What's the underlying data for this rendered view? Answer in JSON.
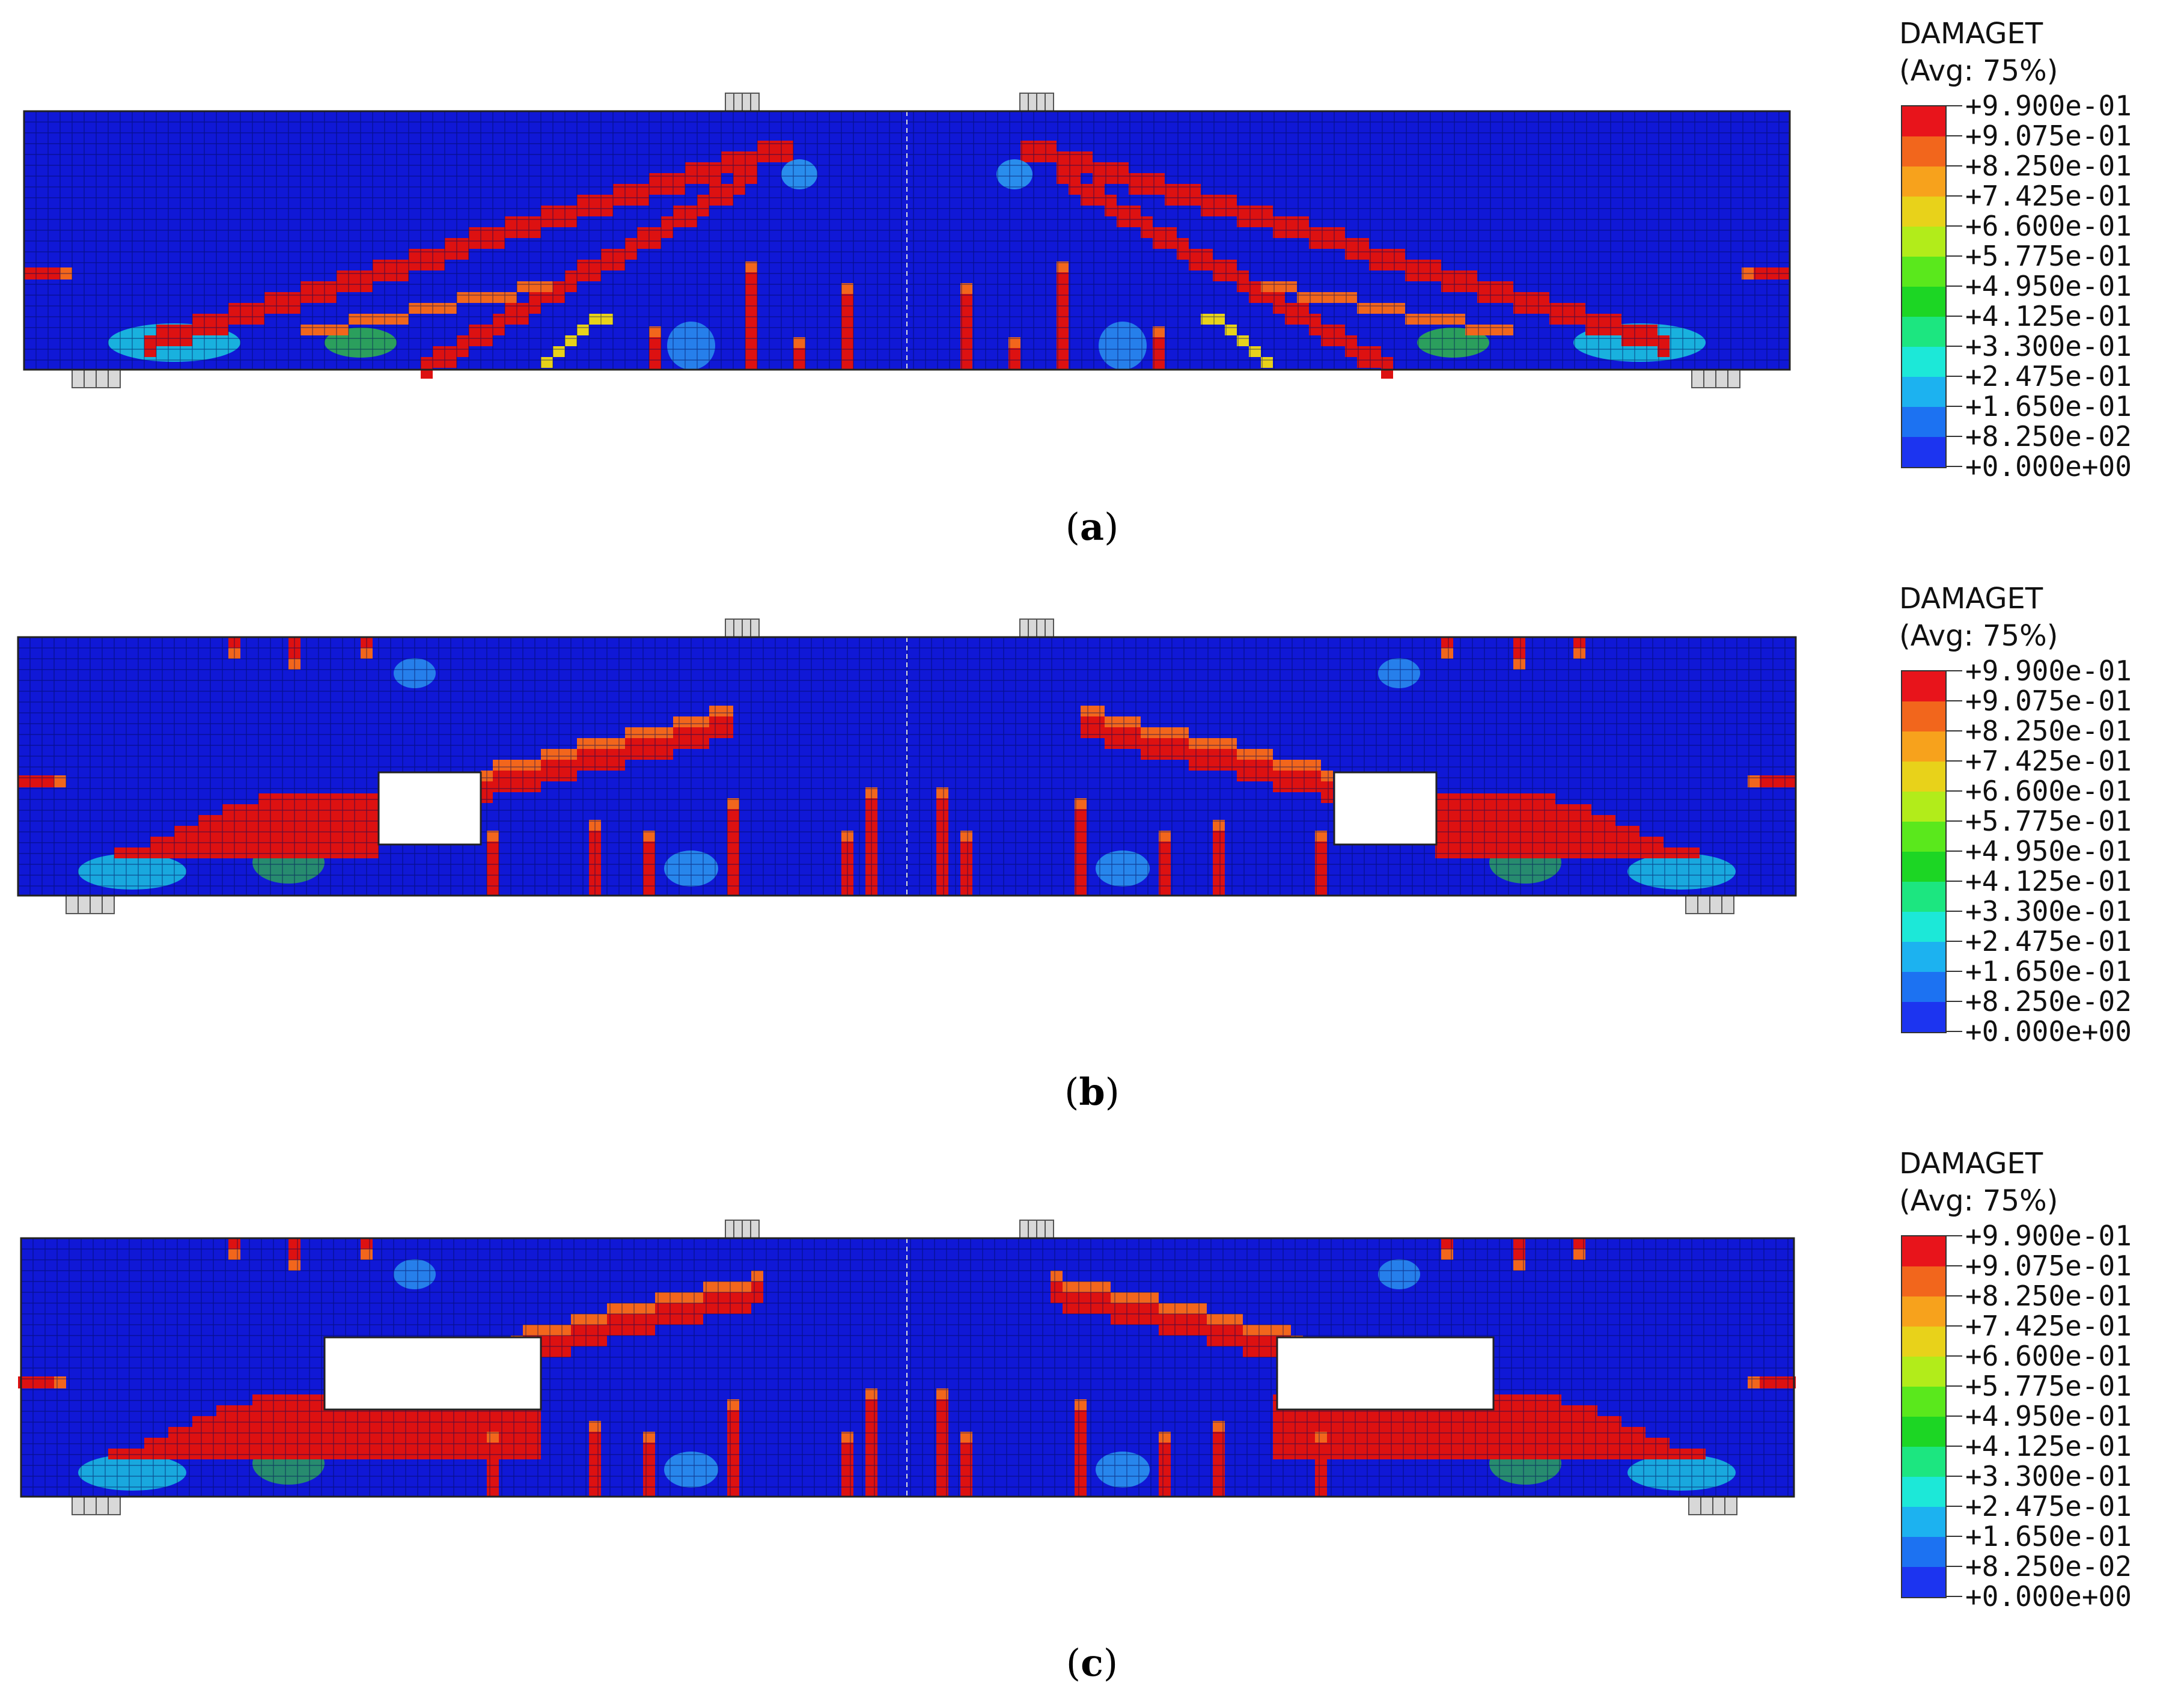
{
  "panels": [
    {
      "caption_open": "(",
      "caption_letter": "a",
      "caption_close": ")",
      "opening": null
    },
    {
      "caption_open": "(",
      "caption_letter": "b",
      "caption_close": ")",
      "opening": "square"
    },
    {
      "caption_open": "(",
      "caption_letter": "c",
      "caption_close": ")",
      "opening": "rectangular"
    }
  ],
  "legend": {
    "variable": "DAMAGET",
    "averaging": "(Avg: 75%)",
    "levels": [
      {
        "label": "+9.900e-01",
        "color": "#e8141b"
      },
      {
        "label": "+9.075e-01",
        "color": "#f2661c"
      },
      {
        "label": "+8.250e-01",
        "color": "#f7a21c"
      },
      {
        "label": "+7.425e-01",
        "color": "#e8d21a"
      },
      {
        "label": "+6.600e-01",
        "color": "#b2ec1a"
      },
      {
        "label": "+5.775e-01",
        "color": "#5ae81c"
      },
      {
        "label": "+4.950e-01",
        "color": "#1cd624"
      },
      {
        "label": "+4.125e-01",
        "color": "#1ce680"
      },
      {
        "label": "+3.300e-01",
        "color": "#1ce8d8"
      },
      {
        "label": "+2.475e-01",
        "color": "#1cb2f0"
      },
      {
        "label": "+1.650e-01",
        "color": "#1c72f2"
      },
      {
        "label": "+8.250e-02",
        "color": "#1c34f0"
      },
      {
        "label": "+0.000e+00",
        "color": null
      }
    ],
    "base_color": "#0a1ad0"
  },
  "colors": {
    "concrete": "#1018d6",
    "mesh_line": "#000a55",
    "crack": "#dd1111",
    "support": "#d8d8d8"
  }
}
